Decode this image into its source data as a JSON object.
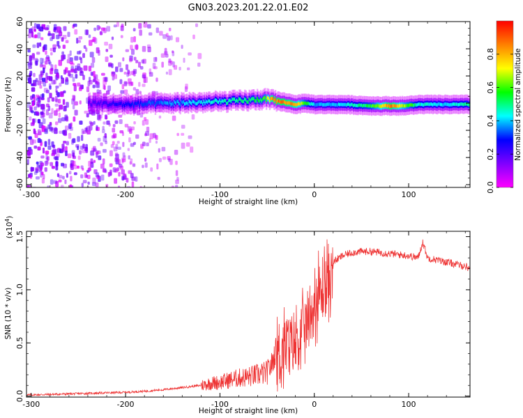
{
  "title": "GN03.2023.201.22.01.E02",
  "chart_data": [
    {
      "type": "heatmap",
      "title": "GN03.2023.201.22.01.E02",
      "xlabel": "Height of straight line (km)",
      "ylabel": "Frequency (Hz)",
      "xlim": [
        -305,
        165
      ],
      "ylim": [
        -62,
        60
      ],
      "xticks": [
        -300,
        -200,
        -100,
        0,
        100
      ],
      "yticks": [
        60,
        40,
        20,
        0,
        -20,
        -40,
        -60
      ],
      "colorbar": {
        "label": "Normalized spectral amplitude",
        "range": [
          0,
          1
        ],
        "ticks": [
          "0.0",
          "0.2",
          "0.4",
          "0.6",
          "0.8"
        ],
        "tick_values": [
          0,
          0.2,
          0.4,
          0.6,
          0.8
        ],
        "colors": [
          "#ff00ff",
          "#8000ff",
          "#0000ff",
          "#00ffff",
          "#00ff00",
          "#ffff00",
          "#ff8000",
          "#ff0000"
        ]
      },
      "ridge": {
        "x": [
          -240,
          -200,
          -150,
          -100,
          -70,
          -55,
          -45,
          -35,
          -20,
          -10,
          0,
          30,
          60,
          80,
          95,
          110,
          140,
          165
        ],
        "y": [
          0,
          -1,
          0,
          1,
          2,
          3,
          2,
          1,
          -1,
          0,
          -1,
          -1,
          -2,
          -2,
          -2,
          -1,
          -1,
          -1
        ],
        "peak_amplitude": [
          0.2,
          0.3,
          0.4,
          0.5,
          0.55,
          0.6,
          0.9,
          0.95,
          0.85,
          0.6,
          0.4,
          0.45,
          0.6,
          0.95,
          0.7,
          0.5,
          0.45,
          0.55
        ]
      },
      "noise_region_x": [
        -305,
        -120
      ]
    },
    {
      "type": "line",
      "xlabel": "Height of straight line (km)",
      "ylabel": "SNR (10 * v/v)",
      "y_multiplier": "(x10",
      "y_multiplier_exp": "4",
      "y_multiplier_close": ")",
      "xlim": [
        -305,
        165
      ],
      "ylim": [
        -0.01,
        1.55
      ],
      "xticks": [
        -300,
        -200,
        -100,
        0,
        100
      ],
      "yticks": [
        "0.0",
        "0.5",
        "1.0",
        "1.5"
      ],
      "ytick_values": [
        0,
        0.5,
        1.0,
        1.5
      ],
      "color": "#ee3333",
      "series": [
        {
          "x": [
            -305,
            -280,
            -260,
            -240,
            -220,
            -200,
            -180,
            -160,
            -140,
            -120,
            -110,
            -100,
            -90,
            -80,
            -70,
            -60,
            -50,
            -45,
            -40,
            -35,
            -30,
            -25,
            -20,
            -15,
            -10,
            -5,
            0,
            5,
            10,
            15,
            20,
            30,
            40,
            50,
            60,
            70,
            80,
            90,
            100,
            110,
            115,
            120,
            130,
            140,
            150,
            160,
            165
          ],
          "y": [
            0.01,
            0.015,
            0.02,
            0.025,
            0.03,
            0.035,
            0.045,
            0.06,
            0.08,
            0.1,
            0.12,
            0.13,
            0.15,
            0.17,
            0.18,
            0.2,
            0.22,
            0.3,
            0.45,
            0.5,
            0.55,
            0.6,
            0.62,
            0.65,
            0.75,
            0.85,
            0.95,
            1.05,
            1.12,
            1.2,
            1.26,
            1.32,
            1.35,
            1.36,
            1.36,
            1.35,
            1.34,
            1.33,
            1.32,
            1.3,
            1.45,
            1.3,
            1.28,
            1.26,
            1.24,
            1.22,
            1.2
          ]
        }
      ]
    }
  ]
}
